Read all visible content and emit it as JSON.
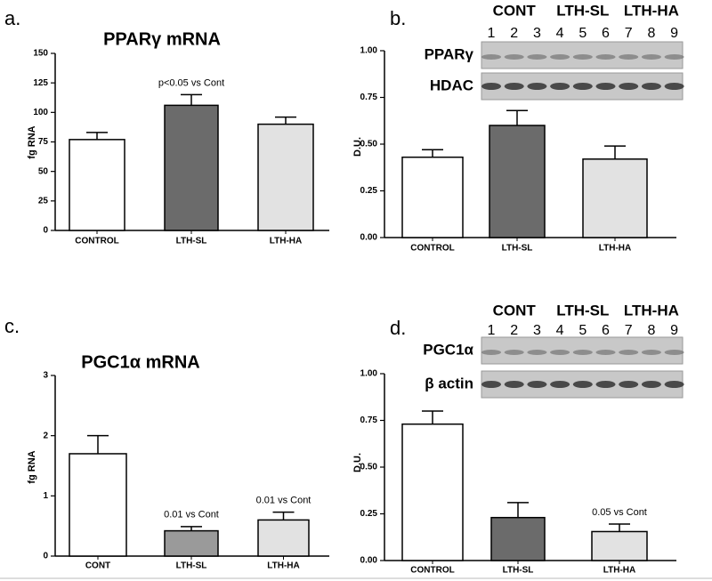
{
  "chart_data": [
    {
      "type": "bar",
      "label": "a.",
      "title": "PPARγ mRNA",
      "ylabel": "fg RNA",
      "categories": [
        "CONTROL",
        "LTH-SL",
        "LTH-HA"
      ],
      "values": [
        77,
        106,
        90
      ],
      "errors": [
        6,
        9,
        6
      ],
      "value_notes": [
        null,
        "p<0.05 vs Cont",
        null
      ],
      "colors": [
        "#ffffff",
        "#6b6b6b",
        "#e2e2e2"
      ],
      "ylim": [
        0,
        150
      ],
      "yticks": [
        0,
        25,
        50,
        75,
        100,
        125,
        150
      ]
    },
    {
      "type": "bar",
      "label": "b.",
      "ylabel": "D.U.",
      "categories": [
        "CONTROL",
        "LTH-SL",
        "LTH-HA"
      ],
      "values": [
        0.43,
        0.6,
        0.42
      ],
      "errors": [
        0.04,
        0.08,
        0.07
      ],
      "colors": [
        "#ffffff",
        "#6b6b6b",
        "#e2e2e2"
      ],
      "ylim": [
        0,
        1
      ],
      "yticks": [
        {
          "value": 0,
          "label": "0.00"
        },
        {
          "value": 0.25,
          "label": "0.25"
        },
        {
          "value": 0.5,
          "label": "0.50"
        },
        {
          "value": 0.75,
          "label": "0.75"
        },
        {
          "value": 1,
          "label": "1.00"
        }
      ],
      "blot": {
        "groups": [
          "CONT",
          "LTH-SL",
          "LTH-HA"
        ],
        "lanes": [
          "1",
          "2",
          "3",
          "4",
          "5",
          "6",
          "7",
          "8",
          "9"
        ],
        "rows": [
          "PPARγ",
          "HDAC"
        ]
      }
    },
    {
      "type": "bar",
      "label": "c.",
      "title": "PGC1α mRNA",
      "ylabel": "fg RNA",
      "categories": [
        "CONT",
        "LTH-SL",
        "LTH-HA"
      ],
      "values": [
        1.7,
        0.42,
        0.6
      ],
      "errors": [
        0.3,
        0.07,
        0.13
      ],
      "value_notes": [
        null,
        "0.01 vs Cont",
        "0.01 vs Cont"
      ],
      "colors": [
        "#ffffff",
        "#9a9a9a",
        "#e2e2e2"
      ],
      "ylim": [
        0,
        3
      ],
      "yticks": [
        0,
        1,
        2,
        3
      ]
    },
    {
      "type": "bar",
      "label": "d.",
      "ylabel": "D.U.",
      "categories": [
        "CONTROL",
        "LTH-SL",
        "LTH-HA"
      ],
      "values": [
        0.73,
        0.23,
        0.155
      ],
      "errors": [
        0.07,
        0.08,
        0.04
      ],
      "value_notes": [
        null,
        null,
        "0.05 vs Cont"
      ],
      "colors": [
        "#ffffff",
        "#6b6b6b",
        "#e2e2e2"
      ],
      "ylim": [
        0,
        1
      ],
      "yticks": [
        {
          "value": 0,
          "label": "0.00"
        },
        {
          "value": 0.25,
          "label": "0.25"
        },
        {
          "value": 0.5,
          "label": "0.50"
        },
        {
          "value": 0.75,
          "label": "0.75"
        },
        {
          "value": 1,
          "label": "1.00"
        }
      ],
      "blot": {
        "groups": [
          "CONT",
          "LTH-SL",
          "LTH-HA"
        ],
        "lanes": [
          "1",
          "2",
          "3",
          "4",
          "5",
          "6",
          "7",
          "8",
          "9"
        ],
        "rows": [
          "PGC1α",
          "β actin"
        ]
      }
    }
  ]
}
